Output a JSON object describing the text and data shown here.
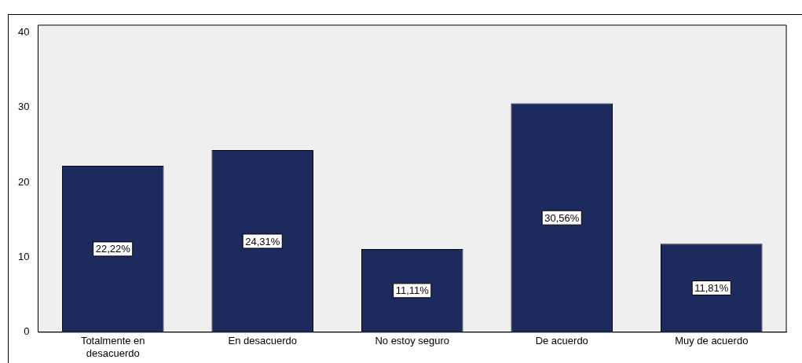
{
  "chart_data": {
    "type": "bar",
    "categories": [
      "Totalmente en\ndesacuerdo",
      "En desacuerdo",
      "No estoy seguro",
      "De acuerdo",
      "Muy de acuerdo"
    ],
    "values": [
      22.22,
      24.31,
      11.11,
      30.56,
      11.81
    ],
    "value_labels": [
      "22,22%",
      "24,31%",
      "11,11%",
      "30,56%",
      "11,81%"
    ],
    "color": "#1c2a5e",
    "ylim": [
      0,
      41
    ],
    "yticks": [
      0,
      10,
      20,
      30,
      40
    ],
    "grid": false,
    "legend": false
  }
}
